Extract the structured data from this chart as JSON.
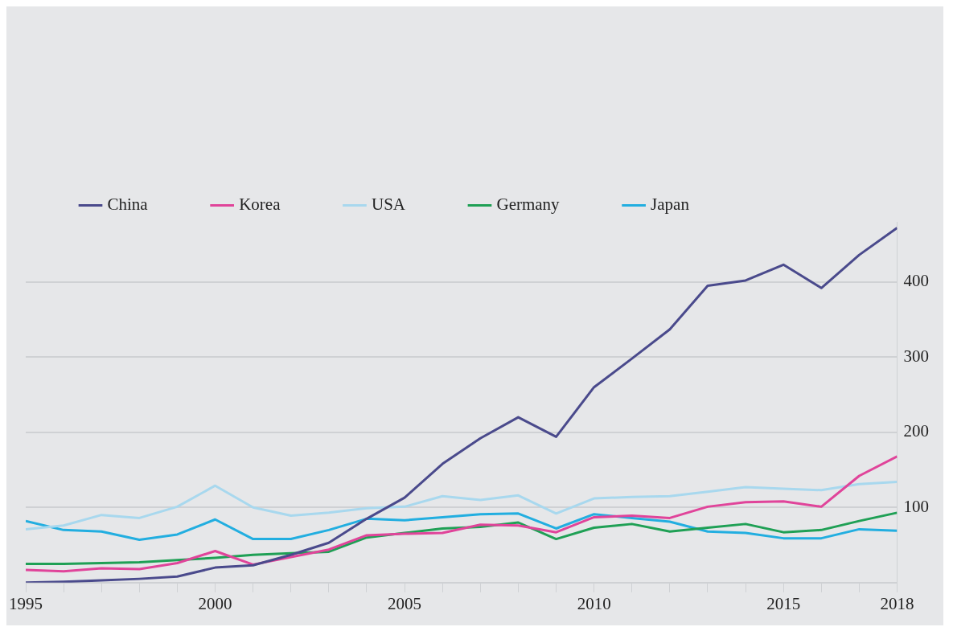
{
  "chart_data": {
    "type": "line",
    "x": [
      1995,
      1996,
      1997,
      1998,
      1999,
      2000,
      2001,
      2002,
      2003,
      2004,
      2005,
      2006,
      2007,
      2008,
      2009,
      2010,
      2011,
      2012,
      2013,
      2014,
      2015,
      2016,
      2017,
      2018
    ],
    "series": [
      {
        "name": "China",
        "color": "#4a4a8c",
        "values": [
          0,
          1,
          3,
          5,
          8,
          20,
          23,
          37,
          53,
          85,
          113,
          158,
          192,
          220,
          194,
          260,
          298,
          337,
          395,
          402,
          423,
          392,
          436,
          472
        ]
      },
      {
        "name": "Korea",
        "color": "#e0449a",
        "values": [
          17,
          15,
          19,
          18,
          26,
          42,
          24,
          34,
          44,
          63,
          65,
          66,
          77,
          76,
          67,
          87,
          89,
          86,
          101,
          107,
          108,
          101,
          142,
          168
        ]
      },
      {
        "name": "USA",
        "color": "#a8d8ee",
        "values": [
          71,
          76,
          90,
          86,
          101,
          129,
          100,
          89,
          93,
          99,
          101,
          115,
          110,
          116,
          92,
          112,
          114,
          115,
          121,
          127,
          125,
          123,
          131,
          134
        ]
      },
      {
        "name": "Germany",
        "color": "#1fa055",
        "values": [
          25,
          25,
          26,
          27,
          30,
          33,
          37,
          39,
          41,
          60,
          66,
          72,
          74,
          80,
          58,
          73,
          78,
          68,
          73,
          78,
          67,
          70,
          82,
          93
        ]
      },
      {
        "name": "Japan",
        "color": "#22aee0",
        "values": [
          82,
          70,
          68,
          57,
          64,
          84,
          58,
          58,
          70,
          85,
          83,
          87,
          91,
          92,
          72,
          91,
          86,
          81,
          68,
          66,
          59,
          59,
          71,
          69
        ]
      }
    ],
    "xlim": [
      1995,
      2018
    ],
    "xticks": [
      1995,
      {
        "value": 1996,
        "label": null
      },
      {
        "value": 1997,
        "label": null
      },
      {
        "value": 1998,
        "label": null
      },
      {
        "value": 1999,
        "label": null
      },
      2000,
      {
        "value": 2001,
        "label": null
      },
      {
        "value": 2002,
        "label": null
      },
      {
        "value": 2003,
        "label": null
      },
      {
        "value": 2004,
        "label": null
      },
      2005,
      {
        "value": 2006,
        "label": null
      },
      {
        "value": 2007,
        "label": null
      },
      {
        "value": 2008,
        "label": null
      },
      {
        "value": 2009,
        "label": null
      },
      2010,
      {
        "value": 2011,
        "label": null
      },
      {
        "value": 2012,
        "label": null
      },
      {
        "value": 2013,
        "label": null
      },
      {
        "value": 2014,
        "label": null
      },
      2015,
      {
        "value": 2016,
        "label": null
      },
      {
        "value": 2017,
        "label": null
      },
      2018
    ],
    "ylim": [
      0,
      480
    ],
    "yticks": [
      {
        "value": 0,
        "label": null
      },
      100,
      200,
      300,
      400
    ],
    "grid": "y",
    "legend": "top left",
    "marker": "none"
  }
}
